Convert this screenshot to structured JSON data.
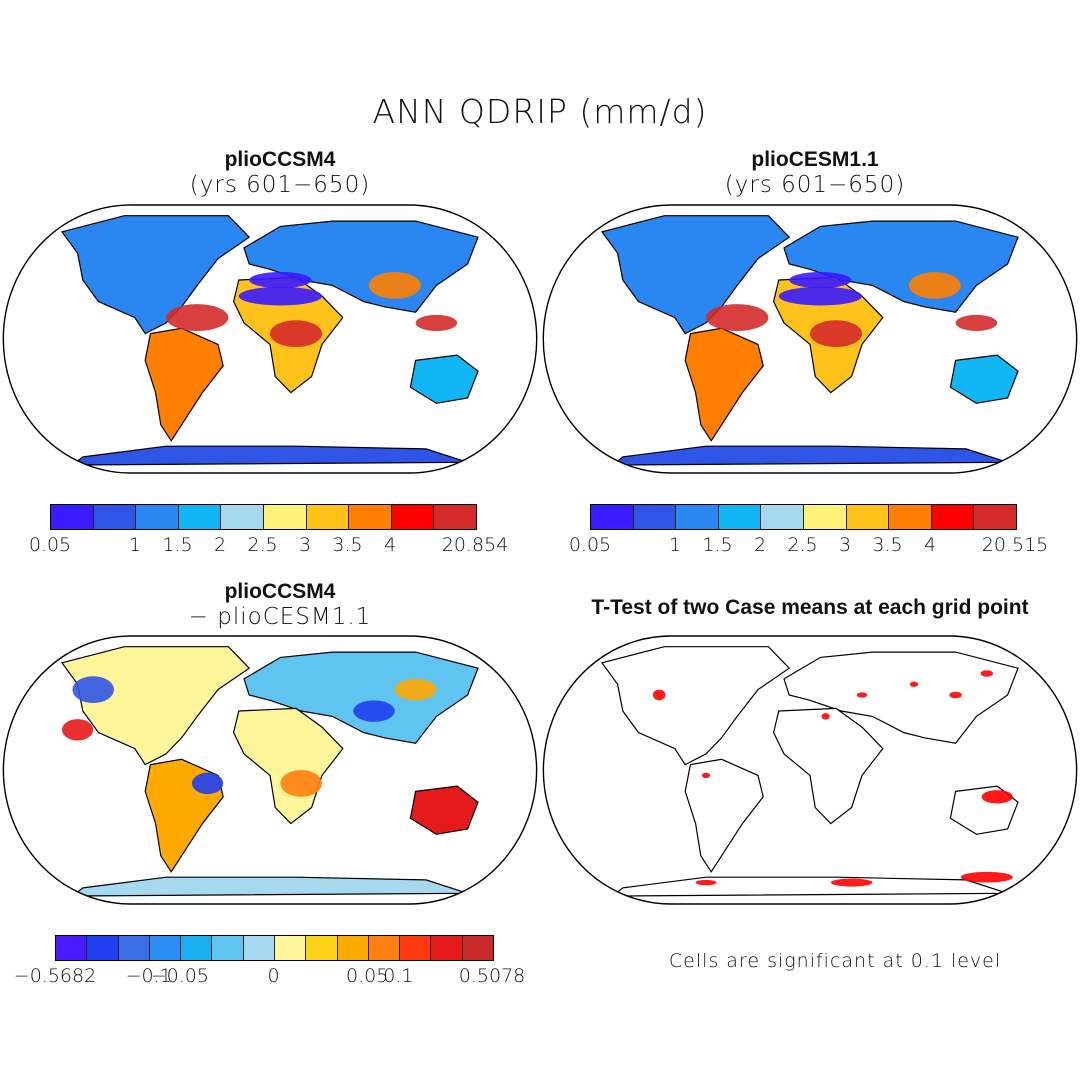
{
  "figure": {
    "title": "ANN QDRIP (mm/d)",
    "note": "Cells are significant at 0.1 level"
  },
  "panels": [
    {
      "id": "top-left",
      "title": "plioCCSM4",
      "subtitle": "(yrs 601−650)",
      "colorbar": {
        "colors": [
          "#3a1aff",
          "#2f55e6",
          "#2a86f0",
          "#12b6f5",
          "#a6d8f0",
          "#fff27a",
          "#ffc21a",
          "#ff7f00",
          "#ff0000",
          "#d42a2a"
        ],
        "labels": [
          "0.05",
          "1",
          "1.5",
          "2",
          "2.5",
          "3",
          "3.5",
          "4",
          "20.854"
        ]
      }
    },
    {
      "id": "top-right",
      "title": "plioCESM1.1",
      "subtitle": "(yrs 601−650)",
      "colorbar": {
        "colors": [
          "#3a1aff",
          "#2f55e6",
          "#2a86f0",
          "#12b6f5",
          "#a6d8f0",
          "#fff27a",
          "#ffc21a",
          "#ff7f00",
          "#ff0000",
          "#d42a2a"
        ],
        "labels": [
          "0.05",
          "1",
          "1.5",
          "2",
          "2.5",
          "3",
          "3.5",
          "4",
          "20.515"
        ]
      }
    },
    {
      "id": "bottom-left",
      "title": "plioCCSM4",
      "subtitle": "− plioCESM1.1",
      "colorbar": {
        "colors": [
          "#4a1aff",
          "#1f3ff0",
          "#3a6ee6",
          "#2c8ef5",
          "#1ab0f0",
          "#5fc4f0",
          "#a6d8f0",
          "#fff59a",
          "#ffd21a",
          "#ffaa00",
          "#ff7f10",
          "#ff3a10",
          "#e61a1a",
          "#c82a2a"
        ],
        "labels": [
          "−0.5682",
          "−0.1",
          "−0.05",
          "0",
          "0.05",
          "0.1",
          "0.5078"
        ]
      }
    },
    {
      "id": "bottom-right",
      "title": "T-Test of two Case means at each grid point"
    }
  ]
}
